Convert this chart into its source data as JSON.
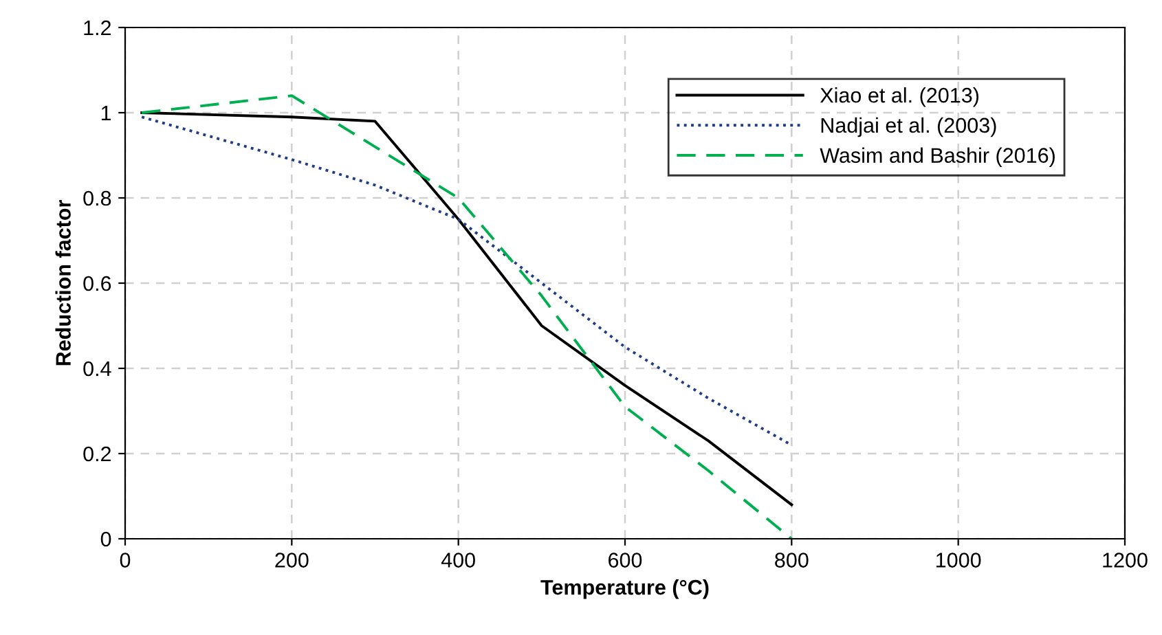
{
  "chart_data": {
    "type": "line",
    "xlabel": "Temperature (°C)",
    "ylabel": "Reduction factor",
    "xlim": [
      0,
      1200
    ],
    "xticks": [
      0,
      200,
      400,
      600,
      800,
      1000,
      1200
    ],
    "ylim": [
      0,
      1.2
    ],
    "yticks": [
      0,
      0.2,
      0.4,
      0.6,
      0.8,
      1,
      1.2
    ],
    "grid": true,
    "legend": "top right",
    "marker": "none",
    "series": [
      {
        "name": "Xiao et al. (2013)",
        "color": "#000000",
        "line_style": "solid",
        "x": [
          20,
          200,
          300,
          400,
          500,
          600,
          700,
          800
        ],
        "values": [
          1.0,
          0.99,
          0.98,
          0.75,
          0.5,
          0.36,
          0.23,
          0.08
        ]
      },
      {
        "name": "Nadjai et al. (2003)",
        "color": "#1f3c88",
        "line_style": "dotted",
        "x": [
          20,
          200,
          300,
          400,
          500,
          600,
          700,
          800
        ],
        "values": [
          0.99,
          0.89,
          0.83,
          0.75,
          0.6,
          0.45,
          0.33,
          0.22
        ]
      },
      {
        "name": "Wasim and Bashir (2016)",
        "color": "#00b050",
        "line_style": "dashed",
        "x": [
          20,
          200,
          300,
          400,
          500,
          600,
          700,
          800
        ],
        "values": [
          1.0,
          1.04,
          0.92,
          0.8,
          0.57,
          0.31,
          0.16,
          0.0
        ]
      }
    ]
  }
}
